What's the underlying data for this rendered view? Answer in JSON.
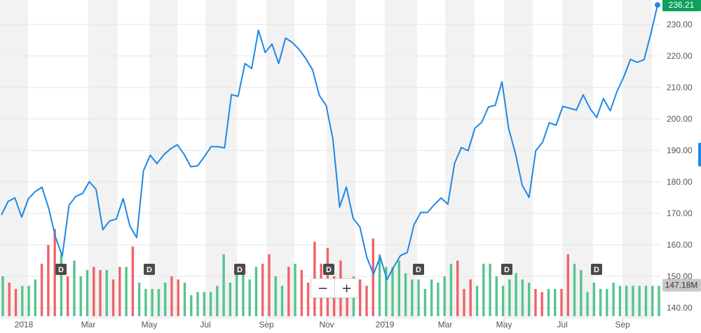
{
  "chart_data": {
    "type": "line",
    "title": "",
    "xlabel": "",
    "ylabel": "",
    "ylim": [
      137,
      237
    ],
    "y_ticks": [
      "140.00",
      "150.00",
      "160.00",
      "170.00",
      "180.00",
      "190.00",
      "200.00",
      "210.00",
      "220.00",
      "230.00"
    ],
    "x_ticks": [
      "2018",
      "Mar",
      "May",
      "Jul",
      "Sep",
      "Nov",
      "2019",
      "Mar",
      "May",
      "Jul",
      "Sep"
    ],
    "last_price_label": "236.21",
    "volume_label": "147.18M",
    "dividend_label": "D",
    "colors": {
      "line": "#1e88e5",
      "up_volume": "#56c48e",
      "down_volume": "#f0636a",
      "band": "#f2f2f2",
      "price_badge": "#0ea05c",
      "volume_badge": "#c9c9c9",
      "dividend_marker": "#4a4a4a"
    },
    "series": [
      {
        "values": [
          169.5,
          173.8,
          174.9,
          168.8,
          174.7,
          176.9,
          178.3,
          171.6,
          162.5,
          156.4,
          172.6,
          175.4,
          176.3,
          180.1,
          177.6,
          164.8,
          167.6,
          168.2,
          174.7,
          165.9,
          162.3,
          183.5,
          188.5,
          185.8,
          188.6,
          190.5,
          191.8,
          188.8,
          184.8,
          185.1,
          188.0,
          191.2,
          191.2,
          190.8,
          207.7,
          207.2,
          217.6,
          216.0,
          228.2,
          221.1,
          223.8,
          217.6,
          225.7,
          224.3,
          222.1,
          219.2,
          215.6,
          207.5,
          204.3,
          193.8,
          172.0,
          178.4,
          168.4,
          165.7,
          156.2,
          150.7,
          156.2,
          148.9,
          153.0,
          156.6,
          157.6,
          166.4,
          170.3,
          170.3,
          172.8,
          174.9,
          172.9,
          185.9,
          190.9,
          189.9,
          197.1,
          198.9,
          203.8,
          204.3,
          211.8,
          196.9,
          188.9,
          178.9,
          175.1,
          189.9,
          192.6,
          198.8,
          198.0,
          204.0,
          203.4,
          202.8,
          207.7,
          203.4,
          200.5,
          206.5,
          202.6,
          208.7,
          213.3,
          218.9,
          218.0,
          218.8,
          227.0,
          236.2
        ]
      }
    ],
    "volume": {
      "values": [
        150.0,
        148.0,
        146.0,
        147.0,
        147.0,
        149.0,
        154.0,
        160.0,
        165.0,
        157.0,
        150.0,
        155.0,
        150.0,
        152.0,
        153.0,
        152.0,
        152.0,
        149.0,
        153.0,
        153.0,
        159.5,
        148.0,
        146.0,
        146.0,
        146.0,
        148.0,
        150.0,
        149.0,
        148.0,
        144.0,
        145.0,
        145.0,
        145.0,
        147.0,
        157.0,
        148.0,
        154.0,
        151.0,
        149.0,
        153.0,
        154.0,
        157.0,
        150.0,
        147.0,
        153.0,
        154.0,
        152.0,
        148.0,
        161.0,
        154.0,
        159.0,
        150.0,
        155.0,
        148.0,
        150.0,
        149.0,
        147.0,
        162.0,
        157.0,
        153.0,
        153.0,
        155.0,
        151.0,
        149.0,
        149.0,
        146.0,
        149.0,
        148.0,
        150.0,
        154.0,
        155.0,
        146.0,
        149.0,
        147.0,
        154.0,
        154.0,
        150.0,
        147.0,
        149.0,
        151.0,
        149.0,
        148.0,
        146.0,
        145.0,
        146.0,
        146.0,
        146.0,
        157.0,
        154.0,
        152.0,
        145.0,
        148.0,
        146.0,
        146.0,
        148.0,
        147.0,
        147.0,
        147.0,
        147.0,
        147.0,
        147.0,
        147.0
      ],
      "down_indices": [
        1,
        2,
        6,
        7,
        8,
        10,
        14,
        15,
        17,
        18,
        20,
        26,
        27,
        40,
        41,
        44,
        46,
        47,
        48,
        49,
        50,
        51,
        52,
        53,
        55,
        56,
        57,
        70,
        71,
        72,
        82,
        83,
        86,
        87
      ],
      "dividend_positions": [
        87,
        213,
        342,
        469,
        597,
        723,
        851
      ]
    },
    "x_tick_positions": [
      34,
      126,
      213,
      293,
      380,
      466,
      549,
      635,
      719,
      802,
      888
    ]
  }
}
